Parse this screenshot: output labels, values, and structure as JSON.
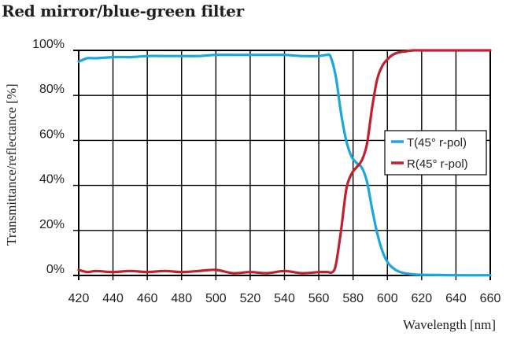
{
  "title": "Red mirror/blue-green filter",
  "colors": {
    "T": "#1ba7dd",
    "R": "#c1202d",
    "grid": "#000000",
    "text": "#231f20"
  },
  "chart_data": {
    "type": "line",
    "title": "Red mirror/blue-green filter",
    "xlabel": "Wavelength [nm]",
    "ylabel": "Transmittance/reflectance [%]",
    "xlim": [
      420,
      660
    ],
    "ylim": [
      0,
      100
    ],
    "xticks": [
      420,
      440,
      460,
      480,
      500,
      520,
      540,
      560,
      580,
      600,
      620,
      640,
      660
    ],
    "yticks": [
      0,
      20,
      40,
      60,
      80,
      100
    ],
    "ytick_labels": [
      "0%",
      "20%",
      "40%",
      "60%",
      "80%",
      "100%"
    ],
    "grid": true,
    "legend_position": "center-right",
    "series": [
      {
        "name": "T(45° r-pol)",
        "color": "#1ba7dd",
        "x": [
          420,
          425,
          430,
          440,
          450,
          460,
          470,
          480,
          490,
          500,
          510,
          520,
          530,
          540,
          550,
          560,
          565,
          567,
          570,
          573,
          576,
          579,
          582,
          585,
          588,
          591,
          594,
          597,
          600,
          603,
          606,
          610,
          615,
          620,
          630,
          640,
          660
        ],
        "y": [
          95,
          96.5,
          96.5,
          97,
          97,
          97.5,
          97.5,
          97.5,
          97.5,
          98,
          98,
          98,
          98,
          98,
          97.5,
          97.5,
          98,
          97,
          88,
          72,
          60,
          53,
          50,
          48,
          42,
          30,
          19,
          11,
          6,
          3.5,
          2,
          1,
          0.5,
          0.3,
          0.2,
          0.1,
          0.1
        ]
      },
      {
        "name": "R(45° r-pol)",
        "color": "#c1202d",
        "x": [
          420,
          425,
          430,
          440,
          450,
          460,
          470,
          480,
          490,
          500,
          510,
          520,
          530,
          540,
          550,
          560,
          565,
          568,
          570,
          573,
          576,
          579,
          582,
          585,
          588,
          591,
          594,
          597,
          600,
          603,
          606,
          610,
          615,
          620,
          630,
          640,
          660
        ],
        "y": [
          2.5,
          1.5,
          2,
          1.5,
          2,
          1.5,
          2,
          1.5,
          2,
          2.5,
          1,
          1.5,
          1,
          2,
          1,
          1.5,
          1.5,
          1.5,
          5,
          20,
          38,
          45,
          48,
          51,
          58,
          74,
          87,
          93,
          96,
          98,
          99,
          99.5,
          100,
          100,
          100,
          100,
          100
        ]
      }
    ]
  },
  "legend": {
    "items": [
      {
        "label": "T(45° r-pol)"
      },
      {
        "label": "R(45° r-pol)"
      }
    ]
  }
}
